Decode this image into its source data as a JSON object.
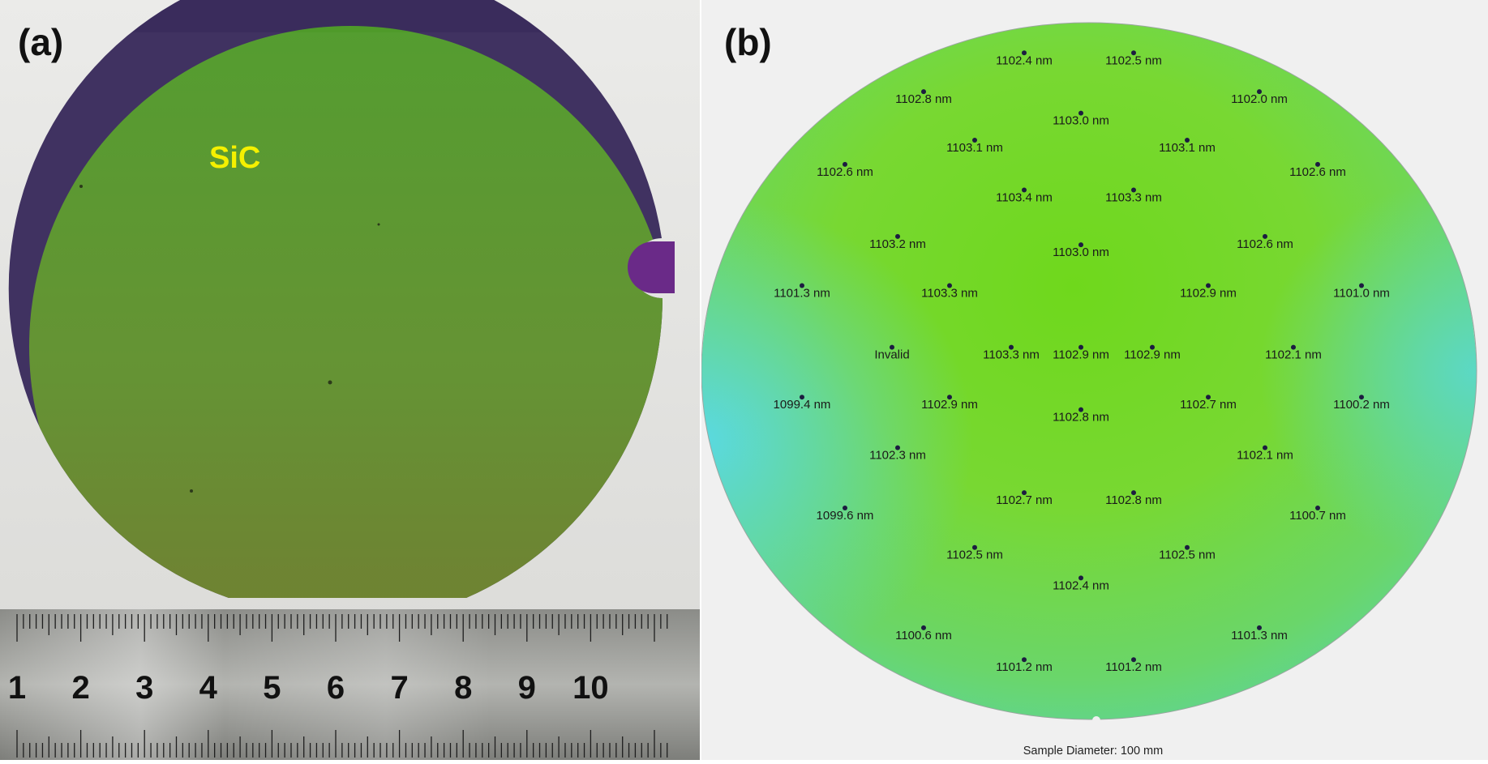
{
  "panels": {
    "a": {
      "label": "(a)",
      "material_label": "SiC",
      "ruler_numbers": [
        "1",
        "2",
        "3",
        "4",
        "5",
        "6",
        "7",
        "8",
        "9",
        "10"
      ]
    },
    "b": {
      "label": "(b)",
      "caption": "Sample Diameter: 100 mm",
      "points": [
        {
          "t": "1102.4 nm"
        },
        {
          "t": "1102.5 nm"
        },
        {
          "t": "1102.8 nm"
        },
        {
          "t": "1103.0 nm"
        },
        {
          "t": "1102.0 nm"
        },
        {
          "t": "1103.1 nm"
        },
        {
          "t": "1103.1 nm"
        },
        {
          "t": "1102.6 nm"
        },
        {
          "t": "1102.6 nm"
        },
        {
          "t": "1103.4 nm"
        },
        {
          "t": "1103.3 nm"
        },
        {
          "t": "1103.2 nm"
        },
        {
          "t": "1102.6 nm"
        },
        {
          "t": "1103.0 nm"
        },
        {
          "t": "1101.3 nm"
        },
        {
          "t": "1103.3 nm"
        },
        {
          "t": "1102.9 nm"
        },
        {
          "t": "1101.0 nm"
        },
        {
          "t": "Invalid"
        },
        {
          "t": "1103.3 nm"
        },
        {
          "t": "1102.9 nm"
        },
        {
          "t": "1102.9 nm"
        },
        {
          "t": "1102.1 nm"
        },
        {
          "t": "1099.4 nm"
        },
        {
          "t": "1102.9 nm"
        },
        {
          "t": "1102.8 nm"
        },
        {
          "t": "1102.7 nm"
        },
        {
          "t": "1100.2 nm"
        },
        {
          "t": "1102.3 nm"
        },
        {
          "t": "1102.1 nm"
        },
        {
          "t": "1102.7 nm"
        },
        {
          "t": "1102.8 nm"
        },
        {
          "t": "1099.6 nm"
        },
        {
          "t": "1100.7 nm"
        },
        {
          "t": "1102.5 nm"
        },
        {
          "t": "1102.5 nm"
        },
        {
          "t": "1102.4 nm"
        },
        {
          "t": "1100.6 nm"
        },
        {
          "t": "1101.3 nm"
        },
        {
          "t": "1101.2 nm"
        },
        {
          "t": "1101.2 nm"
        }
      ]
    }
  },
  "colors": {
    "wafer_green": "#5e9a2c",
    "wafer_edge": "#3d2f5a",
    "map_green": "#72d422",
    "map_cyan": "#5ad8d8",
    "label_yellow": "#f5f000"
  }
}
